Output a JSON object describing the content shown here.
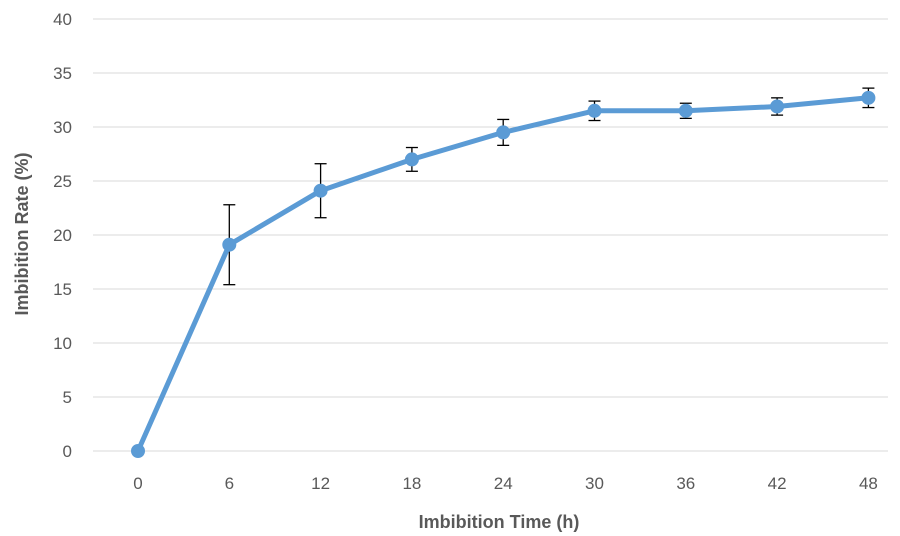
{
  "chart_data": {
    "type": "line",
    "title": "",
    "xlabel": "Imbibition Time (h)",
    "ylabel": "Imbibition Rate (%)",
    "x": [
      0,
      6,
      12,
      18,
      24,
      30,
      36,
      42,
      48
    ],
    "x_tick_labels": [
      "0",
      "6",
      "12",
      "18",
      "24",
      "30",
      "36",
      "42",
      "48"
    ],
    "ylim": [
      0,
      40
    ],
    "y_ticks": [
      0,
      5,
      10,
      15,
      20,
      25,
      30,
      35,
      40
    ],
    "grid": "horizontal",
    "legend": "none",
    "series": [
      {
        "values": [
          0,
          19.1,
          24.1,
          27.0,
          29.5,
          31.5,
          31.5,
          31.9,
          32.7
        ],
        "error": [
          0,
          3.7,
          2.5,
          1.1,
          1.2,
          0.9,
          0.7,
          0.8,
          0.9
        ],
        "color": "#5b9bd5"
      }
    ]
  }
}
